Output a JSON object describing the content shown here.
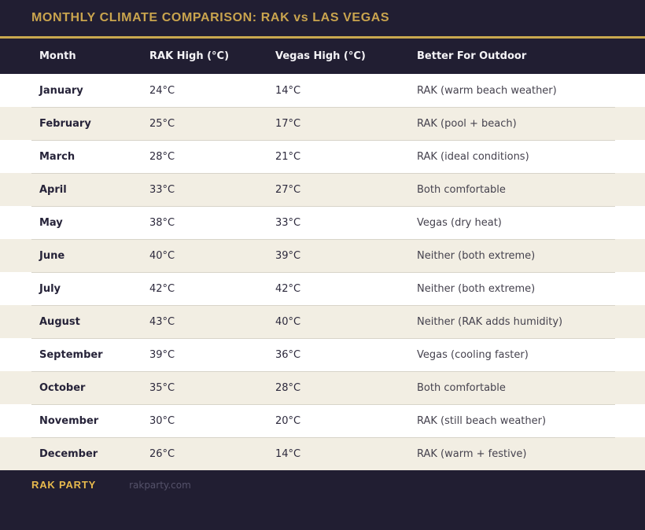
{
  "header": {
    "title": "MONTHLY CLIMATE COMPARISON: RAK vs LAS VEGAS"
  },
  "table": {
    "columns": [
      "Month",
      "RAK High (°C)",
      "Vegas High (°C)",
      "Better For Outdoor"
    ],
    "rows": [
      {
        "month": "January",
        "rak": "24°C",
        "vegas": "14°C",
        "better": "RAK (warm beach weather)"
      },
      {
        "month": "February",
        "rak": "25°C",
        "vegas": "17°C",
        "better": "RAK (pool + beach)"
      },
      {
        "month": "March",
        "rak": "28°C",
        "vegas": "21°C",
        "better": "RAK (ideal conditions)"
      },
      {
        "month": "April",
        "rak": "33°C",
        "vegas": "27°C",
        "better": "Both comfortable"
      },
      {
        "month": "May",
        "rak": "38°C",
        "vegas": "33°C",
        "better": "Vegas (dry heat)"
      },
      {
        "month": "June",
        "rak": "40°C",
        "vegas": "39°C",
        "better": "Neither (both extreme)"
      },
      {
        "month": "July",
        "rak": "42°C",
        "vegas": "42°C",
        "better": "Neither (both extreme)"
      },
      {
        "month": "August",
        "rak": "43°C",
        "vegas": "40°C",
        "better": "Neither (RAK adds humidity)"
      },
      {
        "month": "September",
        "rak": "39°C",
        "vegas": "36°C",
        "better": "Vegas (cooling faster)"
      },
      {
        "month": "October",
        "rak": "35°C",
        "vegas": "28°C",
        "better": "Both comfortable"
      },
      {
        "month": "November",
        "rak": "30°C",
        "vegas": "20°C",
        "better": "RAK (still beach weather)"
      },
      {
        "month": "December",
        "rak": "26°C",
        "vegas": "14°C",
        "better": "RAK (warm + festive)"
      }
    ]
  },
  "footer": {
    "brand": "RAK PARTY",
    "site": "rakparty.com"
  },
  "colors": {
    "navy_background": "#211e32",
    "gold_accent": "#c9a84f",
    "footer_brand_gold": "#e8ba4d",
    "stripe_beige": "#f2eee3",
    "row_white": "#ffffff",
    "divider_gray": "#d8d4c9",
    "body_text": "#262339",
    "better_text": "#45424e",
    "header_text": "#f5f4f7"
  },
  "chart_data": {
    "type": "table",
    "title": "MONTHLY CLIMATE COMPARISON: RAK vs LAS VEGAS",
    "columns": [
      "Month",
      "RAK High (°C)",
      "Vegas High (°C)",
      "Better For Outdoor"
    ],
    "categories": [
      "January",
      "February",
      "March",
      "April",
      "May",
      "June",
      "July",
      "August",
      "September",
      "October",
      "November",
      "December"
    ],
    "series": [
      {
        "name": "RAK High (°C)",
        "values": [
          24,
          25,
          28,
          33,
          38,
          40,
          42,
          43,
          39,
          35,
          30,
          26
        ]
      },
      {
        "name": "Vegas High (°C)",
        "values": [
          14,
          17,
          21,
          27,
          33,
          39,
          42,
          40,
          36,
          28,
          20,
          14
        ]
      }
    ],
    "better_for_outdoor": [
      "RAK (warm beach weather)",
      "RAK (pool + beach)",
      "RAK (ideal conditions)",
      "Both comfortable",
      "Vegas (dry heat)",
      "Neither (both extreme)",
      "Neither (both extreme)",
      "Neither (RAK adds humidity)",
      "Vegas (cooling faster)",
      "Both comfortable",
      "RAK (still beach weather)",
      "RAK (warm + festive)"
    ]
  }
}
